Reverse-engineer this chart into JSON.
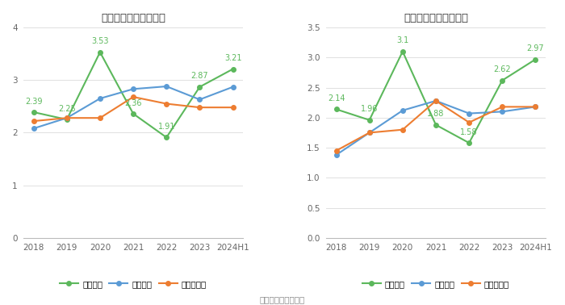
{
  "categories": [
    "2018",
    "2019",
    "2020",
    "2021",
    "2022",
    "2023",
    "2024H1"
  ],
  "left_title": "历年流动比率变化情况",
  "left_series": {
    "流动比率": [
      2.39,
      2.25,
      3.53,
      2.36,
      1.91,
      2.87,
      3.21
    ],
    "行业均値": [
      2.08,
      2.28,
      2.65,
      2.83,
      2.88,
      2.63,
      2.87
    ],
    "行业中位数": [
      2.22,
      2.28,
      2.28,
      2.68,
      2.55,
      2.48,
      2.48
    ]
  },
  "left_ylim": [
    0,
    4
  ],
  "left_yticks": [
    0,
    1,
    2,
    3,
    4
  ],
  "right_title": "历年速动比率变化情况",
  "right_series": {
    "速动比率": [
      2.14,
      1.96,
      3.1,
      1.88,
      1.58,
      2.62,
      2.97
    ],
    "行业均値": [
      1.38,
      1.75,
      2.12,
      2.28,
      2.07,
      2.1,
      2.18
    ],
    "行业中位数": [
      1.45,
      1.75,
      1.8,
      2.28,
      1.92,
      2.18,
      2.18
    ]
  },
  "right_ylim": [
    0,
    3.5
  ],
  "right_yticks": [
    0,
    0.5,
    1.0,
    1.5,
    2.0,
    2.5,
    3.0,
    3.5
  ],
  "colors": {
    "main": "#5cb85c",
    "avg": "#5b9bd5",
    "median": "#ed7d31"
  },
  "legend_labels_left": [
    "流动比率",
    "行业均値",
    "行业中位数"
  ],
  "legend_labels_right": [
    "速动比率",
    "行业均値",
    "行业中位数"
  ],
  "footer": "数据来源：恒生聚源",
  "bg_color": "#ffffff",
  "grid_color": "#e0e0e0"
}
